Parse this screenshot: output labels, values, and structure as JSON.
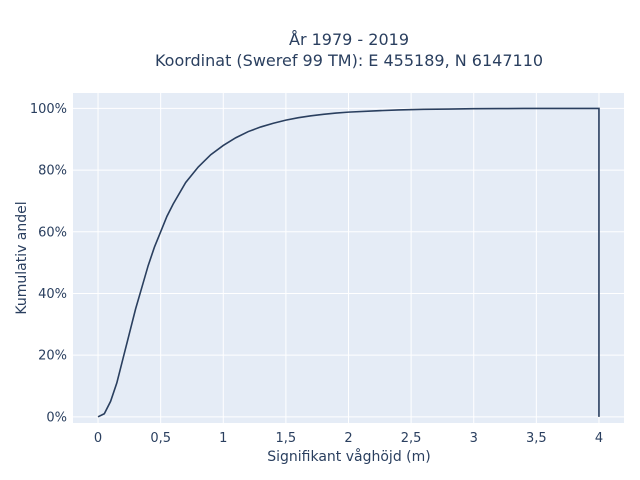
{
  "chart_data": {
    "type": "line",
    "title_line1": "År 1979 - 2019",
    "title_line2": "Koordinat (Sweref 99 TM): E 455189, N 6147110",
    "xlabel": "Signifikant våghöjd (m)",
    "ylabel": "Kumulativ andel",
    "xlim": [
      -0.2,
      4.2
    ],
    "ylim": [
      -0.02,
      1.05
    ],
    "x_ticks": [
      0,
      0.5,
      1,
      1.5,
      2,
      2.5,
      3,
      3.5,
      4
    ],
    "x_tick_labels": [
      "0",
      "0,5",
      "1",
      "1,5",
      "2",
      "2,5",
      "3",
      "3,5",
      "4"
    ],
    "y_ticks": [
      0,
      0.2,
      0.4,
      0.6,
      0.8,
      1.0
    ],
    "y_tick_labels": [
      "0%",
      "20%",
      "40%",
      "60%",
      "80%",
      "100%"
    ],
    "grid": true,
    "line_color": "#2a3f5f",
    "plot_bg": "#e5ecf6",
    "series": [
      {
        "x": [
          0,
          0.05,
          0.1,
          0.15,
          0.2,
          0.25,
          0.3,
          0.35,
          0.4,
          0.45,
          0.5,
          0.55,
          0.6,
          0.7,
          0.8,
          0.9,
          1.0,
          1.1,
          1.2,
          1.3,
          1.4,
          1.5,
          1.6,
          1.7,
          1.8,
          1.9,
          2.0,
          2.2,
          2.4,
          2.6,
          2.8,
          3.0,
          3.2,
          3.4,
          3.6,
          3.8,
          4.0,
          4.0
        ],
        "y": [
          0,
          0.01,
          0.05,
          0.11,
          0.19,
          0.27,
          0.35,
          0.42,
          0.49,
          0.55,
          0.6,
          0.65,
          0.69,
          0.76,
          0.81,
          0.85,
          0.88,
          0.905,
          0.925,
          0.94,
          0.952,
          0.962,
          0.97,
          0.976,
          0.981,
          0.985,
          0.988,
          0.992,
          0.995,
          0.997,
          0.998,
          0.999,
          0.9995,
          0.9998,
          0.9999,
          1.0,
          1.0,
          0.0
        ]
      }
    ]
  }
}
